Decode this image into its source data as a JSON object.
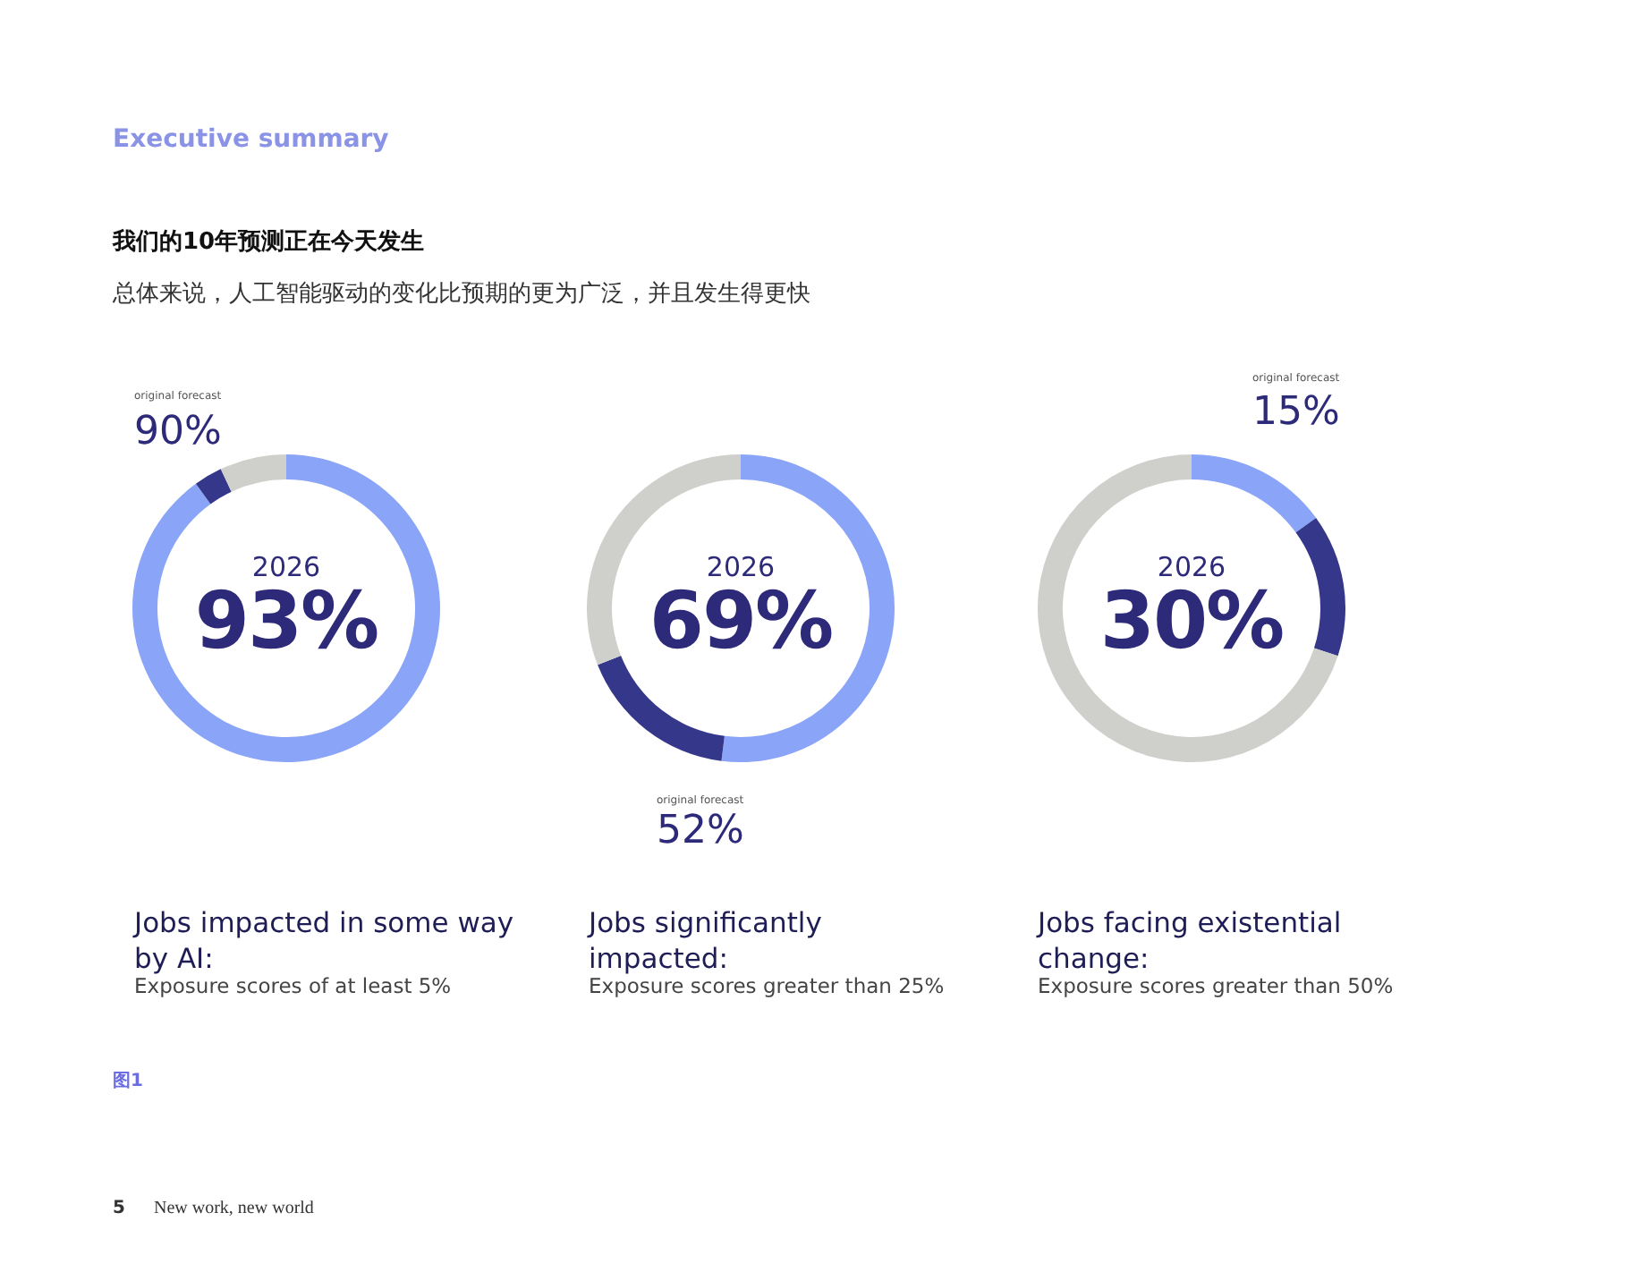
{
  "chart_data": [
    {
      "type": "donut",
      "title": "Jobs impacted in some way by AI:",
      "subtitle": "Exposure scores of at least 5%",
      "categories": [
        null,
        null,
        null
      ],
      "values": [
        90,
        3,
        7
      ],
      "colors": [
        "#8aa4f8",
        "#34378a",
        "#cfcfcb"
      ],
      "annotations": [
        "2026",
        "93%",
        "original forecast",
        "90%",
        "Executive summary",
        "我们的10年预测正在今天发生",
        "总体来说，人工智能驱动的变化比预期的更为广泛，并且发生得更快",
        "图1",
        "5",
        "New work, new world"
      ]
    },
    {
      "type": "donut",
      "title": "Jobs significantly impacted:",
      "subtitle": "Exposure scores greater than 25%",
      "categories": [
        null,
        null,
        null
      ],
      "values": [
        52,
        17,
        31
      ],
      "colors": [
        "#8aa4f8",
        "#34378a",
        "#cfcfcb"
      ],
      "annotations": [
        "2026",
        "69%",
        "original forecast",
        "52%"
      ]
    },
    {
      "type": "donut",
      "title": "Jobs facing existential change:",
      "subtitle": "Exposure scores greater than 50%",
      "categories": [
        null,
        null,
        null
      ],
      "values": [
        15,
        15,
        70
      ],
      "colors": [
        "#8aa4f8",
        "#34378a",
        "#cfcfcb"
      ],
      "annotations": [
        "2026",
        "30%",
        "original forecast",
        "15%"
      ]
    }
  ]
}
